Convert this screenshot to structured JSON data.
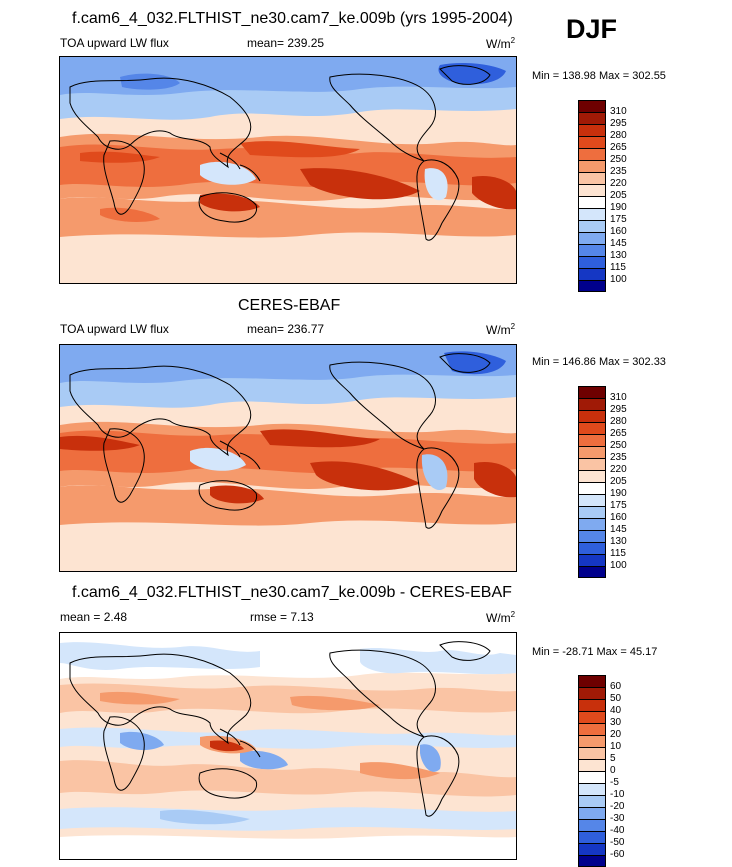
{
  "season": "DJF",
  "panels": [
    {
      "title": "f.cam6_4_032.FLTHIST_ne30.cam7_ke.009b (yrs 1995-2004)",
      "variable": "TOA upward LW flux",
      "mean": "mean= 239.25",
      "rmse": "",
      "units": "W/m",
      "units_sup": "2",
      "minmax": "Min = 138.98 Max = 302.55",
      "colorbar": {
        "labels": [
          "310",
          "295",
          "280",
          "265",
          "250",
          "235",
          "220",
          "205",
          "190",
          "175",
          "160",
          "145",
          "130",
          "115",
          "100"
        ],
        "colors": [
          "#6e0000",
          "#a01a06",
          "#c8300c",
          "#e04a1c",
          "#ee6e3e",
          "#f59a6c",
          "#fac4a4",
          "#fde4d2",
          "#ffffff",
          "#d4e6fb",
          "#a9cbf5",
          "#7faaf0",
          "#5586e8",
          "#2f5fdc",
          "#1537c4",
          "#00008c"
        ]
      }
    },
    {
      "title": "CERES-EBAF",
      "variable": "TOA upward LW flux",
      "mean": "mean= 236.77",
      "rmse": "",
      "units": "W/m",
      "units_sup": "2",
      "minmax": "Min = 146.86 Max = 302.33",
      "colorbar": {
        "labels": [
          "310",
          "295",
          "280",
          "265",
          "250",
          "235",
          "220",
          "205",
          "190",
          "175",
          "160",
          "145",
          "130",
          "115",
          "100"
        ],
        "colors": [
          "#6e0000",
          "#a01a06",
          "#c8300c",
          "#e04a1c",
          "#ee6e3e",
          "#f59a6c",
          "#fac4a4",
          "#fde4d2",
          "#ffffff",
          "#d4e6fb",
          "#a9cbf5",
          "#7faaf0",
          "#5586e8",
          "#2f5fdc",
          "#1537c4",
          "#00008c"
        ]
      }
    },
    {
      "title": "f.cam6_4_032.FLTHIST_ne30.cam7_ke.009b - CERES-EBAF",
      "variable": "",
      "mean": "mean =   2.48",
      "rmse": "rmse =   7.13",
      "units": "W/m",
      "units_sup": "2",
      "minmax": "Min = -28.71 Max =  45.17",
      "colorbar": {
        "labels": [
          "60",
          "50",
          "40",
          "30",
          "20",
          "10",
          "5",
          "0",
          "-5",
          "-10",
          "-20",
          "-30",
          "-40",
          "-50",
          "-60"
        ],
        "colors": [
          "#6e0000",
          "#a01a06",
          "#c8300c",
          "#e04a1c",
          "#ee6e3e",
          "#f59a6c",
          "#fac4a4",
          "#fde4d2",
          "#ffffff",
          "#d4e6fb",
          "#a9cbf5",
          "#7faaf0",
          "#5586e8",
          "#2f5fdc",
          "#1537c4",
          "#00008c"
        ]
      }
    }
  ]
}
